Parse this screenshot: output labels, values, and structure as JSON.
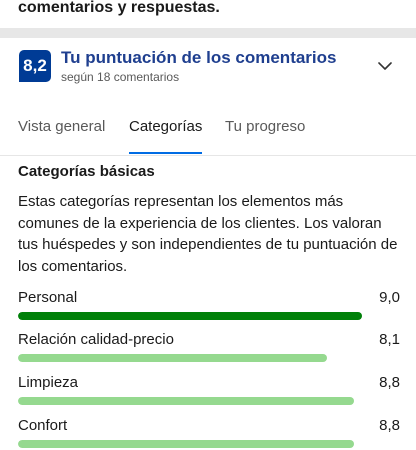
{
  "header_text": "comentarios y respuestas.",
  "score": {
    "value": "8,2",
    "title": "Tu puntuación de los comentarios",
    "subtitle": "según 18 comentarios"
  },
  "tabs": [
    {
      "label": "Vista general",
      "active": false
    },
    {
      "label": "Categorías",
      "active": true
    },
    {
      "label": "Tu progreso",
      "active": false
    }
  ],
  "section": {
    "title": "Categorías básicas",
    "description": "Estas categorías representan los elementos más comunes de la experiencia de los clientes. Los valoran tus huéspedes y son independientes de tu puntuación de los comentarios."
  },
  "categories": [
    {
      "label": "Personal",
      "value": "9,0",
      "score": 9.0,
      "color": "#008009"
    },
    {
      "label": "Relación calidad-precio",
      "value": "8,1",
      "score": 8.1,
      "color": "#95d98f"
    },
    {
      "label": "Limpieza",
      "value": "8,8",
      "score": 8.8,
      "color": "#95d98f"
    },
    {
      "label": "Confort",
      "value": "8,8",
      "score": 8.8,
      "color": "#95d98f"
    }
  ],
  "colors": {
    "brand": "#003b95",
    "accent": "#006ce4",
    "high_score": "#008009",
    "score_fill": "#95d98f"
  }
}
